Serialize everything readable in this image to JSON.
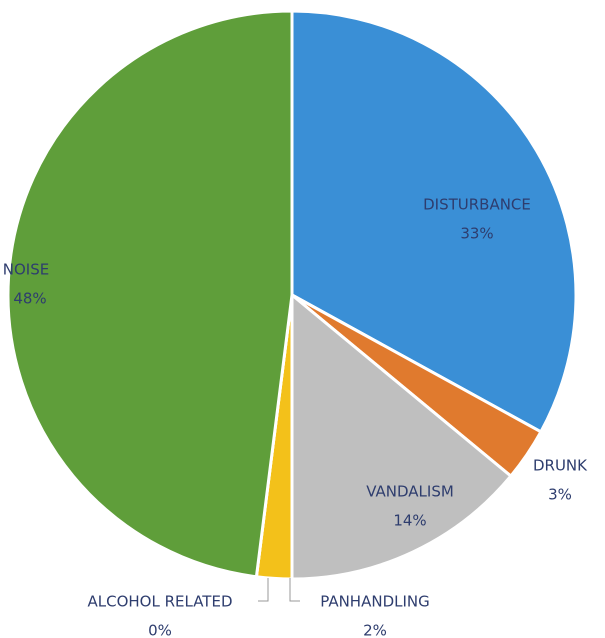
{
  "chart_data": {
    "type": "pie",
    "categories": [
      "DISTURBANCE",
      "DRUNK",
      "VANDALISM",
      "PANHANDLING",
      "ALCOHOL RELATED",
      "NOISE"
    ],
    "values": [
      33,
      3,
      14,
      2,
      0,
      48
    ],
    "value_labels": [
      "33%",
      "3%",
      "14%",
      "2%",
      "0%",
      "48%"
    ],
    "colors": [
      "#3a8fd6",
      "#e07a2e",
      "#bfbfbf",
      "#f3c11a",
      "#4a6fb0",
      "#5f9e3a"
    ]
  }
}
